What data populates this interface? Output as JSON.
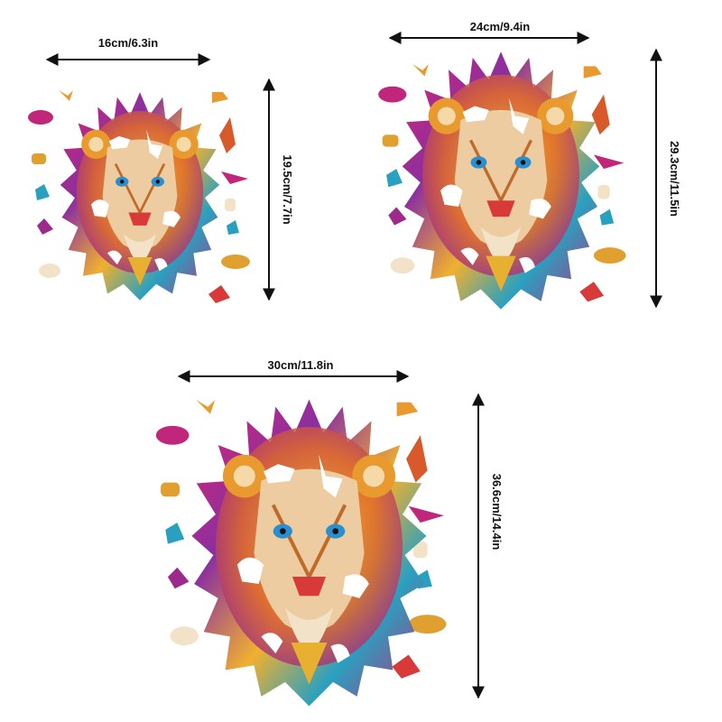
{
  "items": [
    {
      "width": "16cm/6.3in",
      "height": "19.5cm/7.7in"
    },
    {
      "width": "24cm/9.4in",
      "height": "29.3cm/11.5in"
    },
    {
      "width": "30cm/11.8in",
      "height": "36.6cm/14.4in"
    }
  ]
}
